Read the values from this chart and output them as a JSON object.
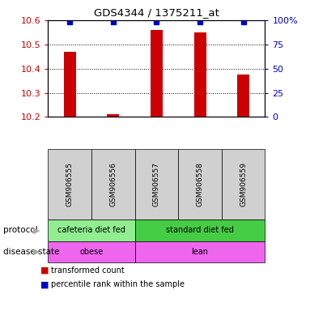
{
  "title": "GDS4344 / 1375211_at",
  "samples": [
    "GSM906555",
    "GSM906556",
    "GSM906557",
    "GSM906558",
    "GSM906559"
  ],
  "red_values": [
    10.47,
    10.21,
    10.56,
    10.55,
    10.375
  ],
  "y_min": 10.2,
  "y_max": 10.6,
  "y_ticks": [
    10.2,
    10.3,
    10.4,
    10.5,
    10.6
  ],
  "y2_ticks": [
    0,
    25,
    50,
    75,
    100
  ],
  "y2_tick_labels": [
    "0",
    "25",
    "50",
    "75",
    "100%"
  ],
  "grid_lines": [
    10.3,
    10.4,
    10.5
  ],
  "protocol_labels": [
    "cafeteria diet fed",
    "standard diet fed"
  ],
  "protocol_colors": [
    "#90ee90",
    "#44cc44"
  ],
  "disease_labels": [
    "obese",
    "lean"
  ],
  "disease_color": "#ee66ee",
  "bar_color": "#cc0000",
  "dot_color": "#0000cc",
  "sample_box_color": "#d0d0d0",
  "axis_color_red": "#cc0000",
  "axis_color_blue": "#0000cc",
  "legend_labels": [
    "transformed count",
    "percentile rank within the sample"
  ]
}
